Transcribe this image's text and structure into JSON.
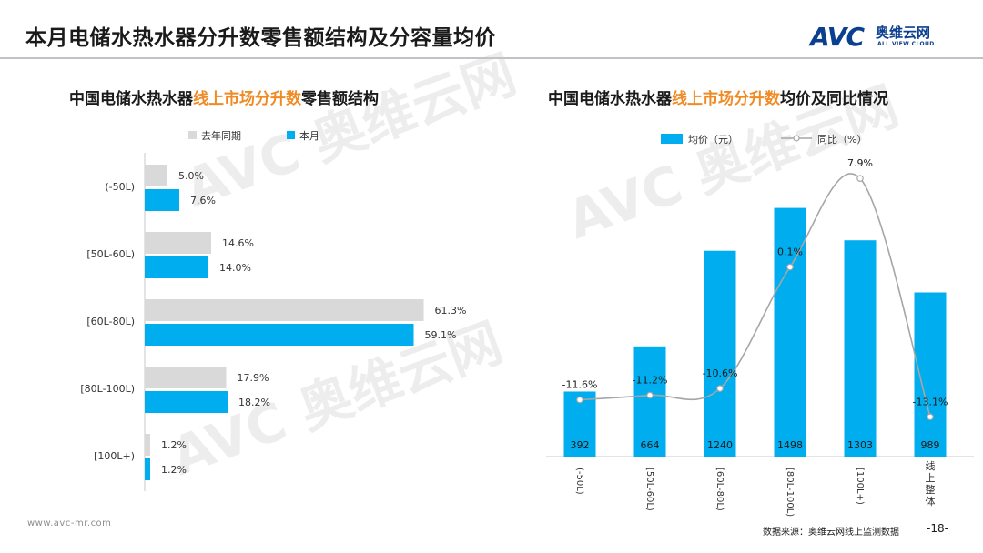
{
  "page": {
    "title": "本月电储水热水器分升数零售额结构及分容量均价",
    "footer_url": "www.avc-mr.com",
    "source": "数据来源：奥维云网线上监测数据",
    "page_number": "-18-"
  },
  "logo": {
    "brand": "AVC",
    "brand_cn": "奥维云网",
    "brand_en": "ALL VIEW CLOUD"
  },
  "watermark": {
    "text": "AVC 奥维云网"
  },
  "colors": {
    "current": "#00aeef",
    "last_year": "#d9d9d9",
    "line": "#a6a6a6",
    "highlight": "#f08a24"
  },
  "chart_data": [
    {
      "type": "bar",
      "orientation": "horizontal",
      "title": {
        "pre": "中国电储水热水器",
        "highlight": "线上市场分升数",
        "post": "零售额结构"
      },
      "categories": [
        "(-50L)",
        "[50L-60L)",
        "[60L-80L)",
        "[80L-100L)",
        "[100L+)"
      ],
      "series": [
        {
          "name": "去年同期",
          "values": [
            5.0,
            14.6,
            61.3,
            17.9,
            1.2
          ],
          "labels": [
            "5.0%",
            "14.6%",
            "61.3%",
            "17.9%",
            "1.2%"
          ]
        },
        {
          "name": "本月",
          "values": [
            7.6,
            14.0,
            59.1,
            18.2,
            1.2
          ],
          "labels": [
            "7.6%",
            "14.0%",
            "59.1%",
            "18.2%",
            "1.2%"
          ]
        }
      ],
      "legend_position": "top-left",
      "grid": false
    },
    {
      "type": "bar+line",
      "title": {
        "pre": "中国电储水热水器",
        "highlight": "线上市场分升数",
        "post": "均价及同比情况"
      },
      "categories": [
        "(-50L)",
        "[50L-60L)",
        "[60L-80L)",
        "[80L-100L)",
        "[100L+)",
        "线上整体"
      ],
      "bar_series": {
        "name": "均价（元）",
        "values": [
          392,
          664,
          1240,
          1498,
          1303,
          989
        ]
      },
      "line_series": {
        "name": "同比（%）",
        "values": [
          -11.6,
          -11.2,
          -10.6,
          0.1,
          7.9,
          -13.1
        ],
        "labels": [
          "-11.6%",
          "-11.2%",
          "-10.6%",
          "0.1%",
          "7.9%",
          "-13.1%"
        ]
      },
      "legend_position": "top",
      "grid": false
    }
  ]
}
